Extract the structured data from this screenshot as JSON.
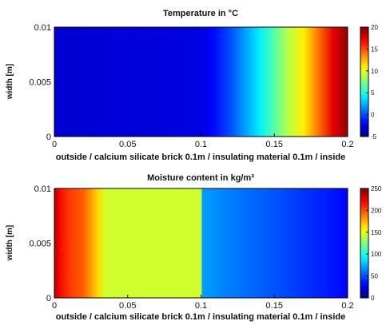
{
  "chart_data": [
    {
      "type": "heatmap",
      "title": "Temperature in °C",
      "xlabel": "outside / calcium silicate brick 0.1m / insulating material 0.1m / inside",
      "ylabel": "width [m]",
      "xlim": [
        0,
        0.2
      ],
      "ylim": [
        0,
        0.01
      ],
      "xticks": [
        "0",
        "0.05",
        "0.1",
        "0.15",
        "0.2"
      ],
      "xtick_values": [
        0,
        0.05,
        0.1,
        0.15,
        0.2
      ],
      "yticks": [
        "0",
        "0.005",
        "0.01"
      ],
      "ytick_values": [
        0,
        0.005,
        0.01
      ],
      "colorbar": {
        "min": -5,
        "max": 20,
        "ticks": [
          "20",
          "15",
          "10",
          "5",
          "0",
          "-5"
        ],
        "tick_values": [
          20,
          15,
          10,
          5,
          0,
          -5
        ]
      },
      "profile_x": [
        0,
        0.1,
        0.105,
        0.11,
        0.12,
        0.13,
        0.14,
        0.15,
        0.16,
        0.17,
        0.18,
        0.19,
        0.2
      ],
      "profile_values": [
        -3,
        -2.6,
        -2.2,
        -1.5,
        0,
        2,
        4,
        6.5,
        9,
        11,
        14,
        17.5,
        19.5
      ]
    },
    {
      "type": "heatmap",
      "title": "Moisture content in kg/m³",
      "xlabel": "outside / calcium silicate brick 0.1m / insulating material 0.1m / inside",
      "ylabel": "width [m]",
      "xlim": [
        0,
        0.2
      ],
      "ylim": [
        0,
        0.01
      ],
      "xticks": [
        "0",
        "0.05",
        "0.1",
        "0.15",
        "0.2"
      ],
      "xtick_values": [
        0,
        0.05,
        0.1,
        0.15,
        0.2
      ],
      "yticks": [
        "0",
        "0.005",
        "0.01"
      ],
      "ytick_values": [
        0,
        0.005,
        0.01
      ],
      "colorbar": {
        "min": 0,
        "max": 250,
        "ticks": [
          "250",
          "200",
          "150",
          "100",
          "50",
          "0"
        ],
        "tick_values": [
          250,
          200,
          150,
          100,
          50,
          0
        ]
      },
      "profile_x": [
        0,
        0.005,
        0.01,
        0.015,
        0.02,
        0.025,
        0.03,
        0.035,
        0.1,
        0.101,
        0.12,
        0.14,
        0.16,
        0.18,
        0.2
      ],
      "profile_values": [
        235,
        215,
        205,
        200,
        195,
        180,
        165,
        145,
        145,
        70,
        62,
        55,
        48,
        40,
        32
      ]
    }
  ]
}
